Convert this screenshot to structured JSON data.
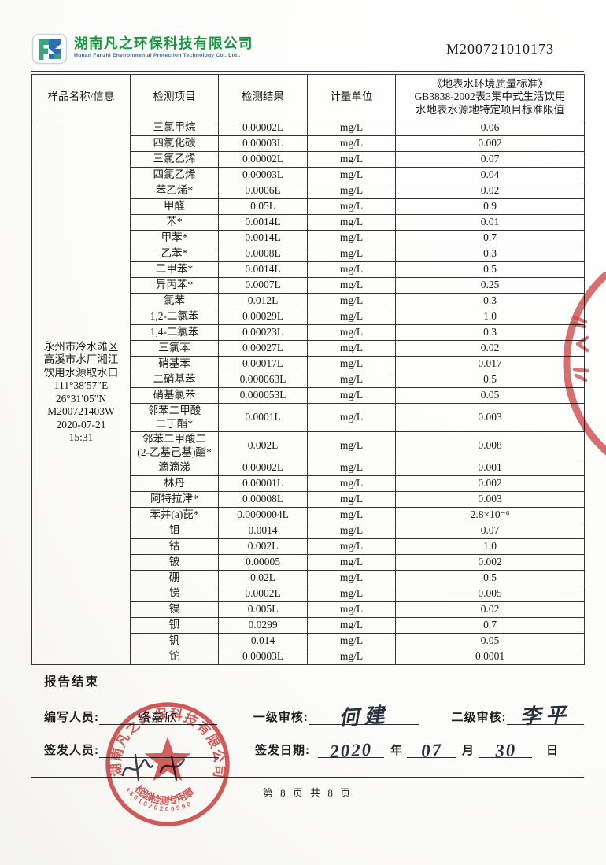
{
  "header": {
    "company_cn": "湖南凡之环保科技有限公司",
    "company_en": "Hunan Fanzhi Environmental Protection Technology Co., Ltd..",
    "report_no": "M200721010173"
  },
  "table": {
    "columns": [
      "样品名称/信息",
      "检测项目",
      "检测结果",
      "计量单位",
      "《地表水环境质量标准》\nGB3838-2002表3集中式生活饮用\n水地表水源地特定项目标准限值"
    ],
    "sample_info": "永州市冷水滩区\n高溪市水厂湘江\n饮用水源取水口\n111°38′57″E\n26°31′05″N\nM200721403W\n2020-07-21\n15:31",
    "rows": [
      {
        "item": "三氯甲烷",
        "result": "0.00002L",
        "unit": "mg/L",
        "limit": "0.06"
      },
      {
        "item": "四氯化碳",
        "result": "0.00003L",
        "unit": "mg/L",
        "limit": "0.002"
      },
      {
        "item": "三氯乙烯",
        "result": "0.00002L",
        "unit": "mg/L",
        "limit": "0.07"
      },
      {
        "item": "四氯乙烯",
        "result": "0.00003L",
        "unit": "mg/L",
        "limit": "0.04"
      },
      {
        "item": "苯乙烯*",
        "result": "0.0006L",
        "unit": "mg/L",
        "limit": "0.02"
      },
      {
        "item": "甲醛",
        "result": "0.05L",
        "unit": "mg/L",
        "limit": "0.9"
      },
      {
        "item": "苯*",
        "result": "0.0014L",
        "unit": "mg/L",
        "limit": "0.01"
      },
      {
        "item": "甲苯*",
        "result": "0.0014L",
        "unit": "mg/L",
        "limit": "0.7"
      },
      {
        "item": "乙苯*",
        "result": "0.0008L",
        "unit": "mg/L",
        "limit": "0.3"
      },
      {
        "item": "二甲苯*",
        "result": "0.0014L",
        "unit": "mg/L",
        "limit": "0.5"
      },
      {
        "item": "异丙苯*",
        "result": "0.0007L",
        "unit": "mg/L",
        "limit": "0.25"
      },
      {
        "item": "氯苯",
        "result": "0.012L",
        "unit": "mg/L",
        "limit": "0.3"
      },
      {
        "item": "1,2-二氯苯",
        "result": "0.00029L",
        "unit": "mg/L",
        "limit": "1.0"
      },
      {
        "item": "1,4-二氯苯",
        "result": "0.00023L",
        "unit": "mg/L",
        "limit": "0.3"
      },
      {
        "item": "三氯苯",
        "result": "0.00027L",
        "unit": "mg/L",
        "limit": "0.02"
      },
      {
        "item": "硝基苯",
        "result": "0.00017L",
        "unit": "mg/L",
        "limit": "0.017"
      },
      {
        "item": "二硝基苯",
        "result": "0.000063L",
        "unit": "mg/L",
        "limit": "0.5"
      },
      {
        "item": "硝基氯苯",
        "result": "0.000053L",
        "unit": "mg/L",
        "limit": "0.05"
      },
      {
        "item": "邻苯二甲酸\n二丁酯*",
        "result": "0.0001L",
        "unit": "mg/L",
        "limit": "0.003"
      },
      {
        "item": "邻苯二甲酸二\n(2-乙基己基)酯*",
        "result": "0.002L",
        "unit": "mg/L",
        "limit": "0.008"
      },
      {
        "item": "滴滴涕",
        "result": "0.00002L",
        "unit": "mg/L",
        "limit": "0.001"
      },
      {
        "item": "林丹",
        "result": "0.00001L",
        "unit": "mg/L",
        "limit": "0.002"
      },
      {
        "item": "阿特拉津*",
        "result": "0.00008L",
        "unit": "mg/L",
        "limit": "0.003"
      },
      {
        "item": "苯并(a)芘*",
        "result": "0.0000004L",
        "unit": "mg/L",
        "limit": "2.8×10⁻⁶"
      },
      {
        "item": "钼",
        "result": "0.0014",
        "unit": "mg/L",
        "limit": "0.07"
      },
      {
        "item": "钴",
        "result": "0.002L",
        "unit": "mg/L",
        "limit": "1.0"
      },
      {
        "item": "铍",
        "result": "0.00005",
        "unit": "mg/L",
        "limit": "0.002"
      },
      {
        "item": "硼",
        "result": "0.02L",
        "unit": "mg/L",
        "limit": "0.5"
      },
      {
        "item": "锑",
        "result": "0.0002L",
        "unit": "mg/L",
        "limit": "0.005"
      },
      {
        "item": "镍",
        "result": "0.005L",
        "unit": "mg/L",
        "limit": "0.02"
      },
      {
        "item": "钡",
        "result": "0.0299",
        "unit": "mg/L",
        "limit": "0.7"
      },
      {
        "item": "钒",
        "result": "0.014",
        "unit": "mg/L",
        "limit": "0.05"
      },
      {
        "item": "铊",
        "result": "0.00003L",
        "unit": "mg/L",
        "limit": "0.0001"
      }
    ]
  },
  "closing": {
    "report_end": "报告结束",
    "writer_label": "编写人员:",
    "writer_name": "骆嘉欣",
    "review1_label": "一级审核:",
    "review1_name": "何建",
    "review2_label": "二级审核:",
    "review2_name": "李平",
    "issuer_label": "签发人员:",
    "issue_date_label": "签发日期:",
    "date_year": "2020",
    "year_char": "年",
    "date_month": "07",
    "month_char": "月",
    "date_day": "30",
    "day_char": "日"
  },
  "stamps": {
    "round_company_text": "湖南凡之环保科技有限公司",
    "round_title_text": "检验检测专用章",
    "round_code": "4301020200990"
  },
  "footer": {
    "page_text": "第 8 页 共 8 页"
  },
  "colors": {
    "stamp_red": "#c92f2f",
    "company_green": "#14993f",
    "company_blue": "#2f6fb0",
    "header_rule_navy": "#2c3a56",
    "logo_teal": "#3fa477"
  }
}
